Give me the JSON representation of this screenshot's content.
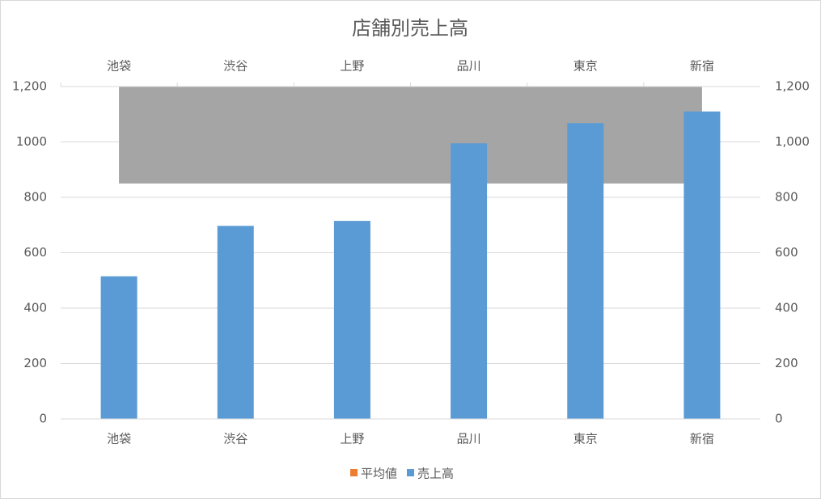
{
  "chart_data": {
    "type": "bar",
    "title": "店舗別売上高",
    "categories": [
      "池袋",
      "渋谷",
      "上野",
      "品川",
      "東京",
      "新宿"
    ],
    "series": [
      {
        "name": "平均値",
        "type": "area",
        "axis": "y2",
        "color": "#a5a5a5",
        "legend_color": "#ed7d31",
        "values": [
          850,
          850,
          850,
          850,
          850,
          850
        ]
      },
      {
        "name": "売上高",
        "type": "bar",
        "color": "#5b9bd5",
        "values": [
          515,
          697,
          715,
          995,
          1068,
          1110
        ]
      }
    ],
    "ylim": [
      0,
      1200
    ],
    "yticks": [
      0,
      200,
      400,
      600,
      800,
      1000,
      {
        "value": 1200,
        "label": "1,200"
      }
    ],
    "y2lim": [
      0,
      1200
    ],
    "y2ticks": [
      0,
      200,
      400,
      600,
      800,
      {
        "value": 1000,
        "label": "1,000"
      },
      {
        "value": 1200,
        "label": "1,200"
      }
    ],
    "grid": true,
    "legend": "bottom",
    "secondary_x_axis": "top"
  }
}
